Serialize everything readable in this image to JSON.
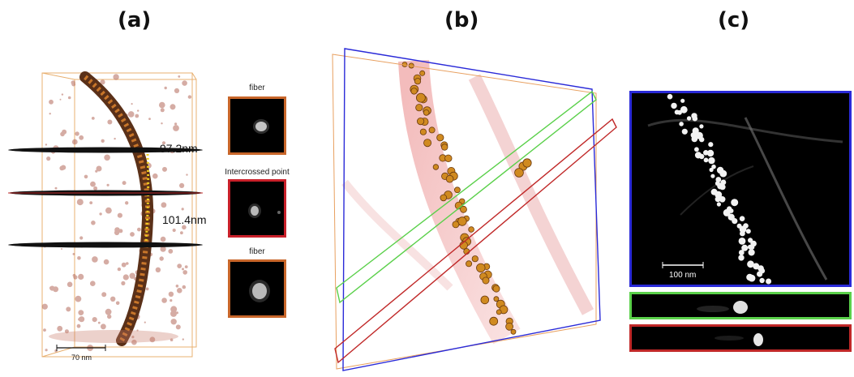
{
  "panels": {
    "a": {
      "label": "(a)",
      "measurements": [
        "97.2nm",
        "101.4nm"
      ],
      "scale_bar": "70 nm",
      "insets": [
        {
          "label": "fiber",
          "border_color": "#c8662a"
        },
        {
          "label": "Intercrossed point",
          "border_color": "#c8202a"
        },
        {
          "label": "fiber",
          "border_color": "#c8662a"
        }
      ]
    },
    "b": {
      "label": "(b)",
      "plane_colors": {
        "blue": "#2a2ad8",
        "green": "#5ad04a",
        "red": "#c02828",
        "box": "#e8a060"
      }
    },
    "c": {
      "label": "(c)",
      "scale_bar": "100 nm",
      "frame_colors": {
        "main": "#2a2ad8",
        "xz_green": "#5ad04a",
        "xz_red": "#c02828"
      }
    }
  }
}
